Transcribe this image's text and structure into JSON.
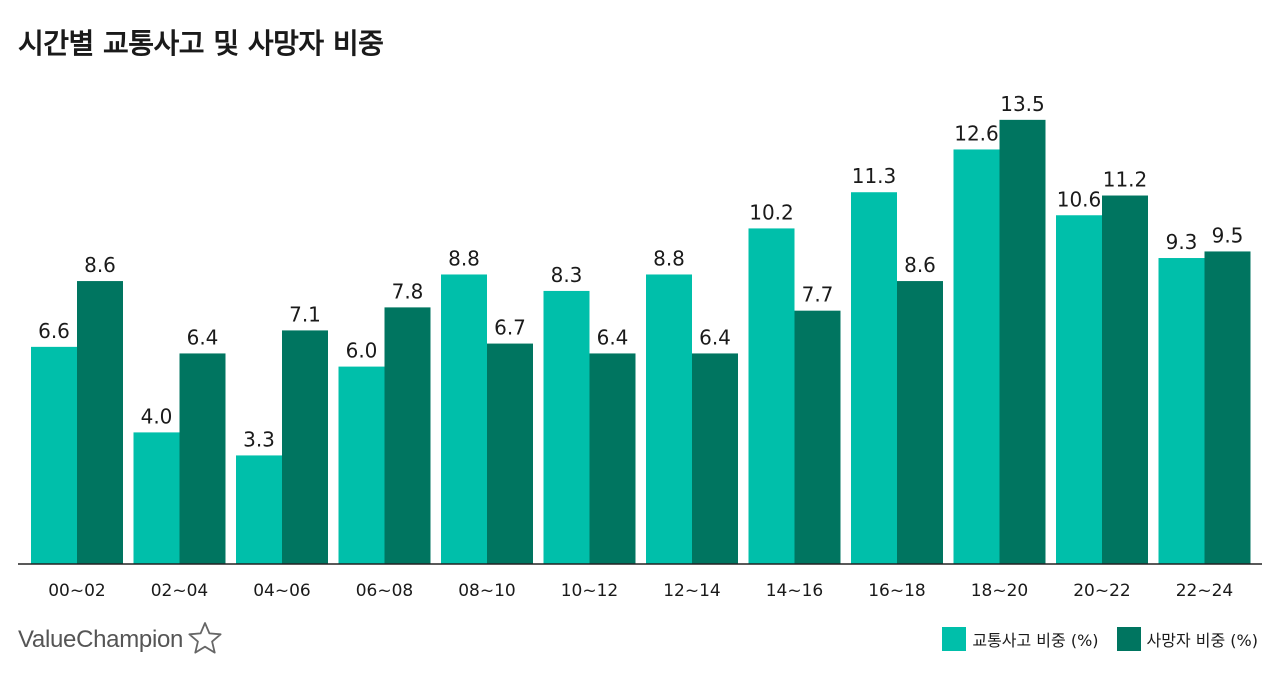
{
  "title": "시간별 교통사고 및 사망자 비중",
  "brand": {
    "name": "ValueChampion",
    "icon": "star-outline-icon"
  },
  "chart_data": {
    "type": "bar",
    "categories": [
      "00~02",
      "02~04",
      "04~06",
      "06~08",
      "08~10",
      "10~12",
      "12~14",
      "14~16",
      "16~18",
      "18~20",
      "20~22",
      "22~24"
    ],
    "series": [
      {
        "name": "교통사고 비중 (%)",
        "color": "#00BFAA",
        "values": [
          6.6,
          4.0,
          3.3,
          6.0,
          8.8,
          8.3,
          8.8,
          10.2,
          11.3,
          12.6,
          10.6,
          9.3
        ],
        "labels": [
          "6.6",
          "4.0",
          "3.3",
          "6.0",
          "8.8",
          "8.3",
          "8.8",
          "10.2",
          "11.3",
          "12.6",
          "10.6",
          "9.3"
        ]
      },
      {
        "name": "사망자 비중 (%)",
        "color": "#007560",
        "values": [
          8.6,
          6.4,
          7.1,
          7.8,
          6.7,
          6.4,
          6.4,
          7.7,
          8.6,
          13.5,
          11.2,
          9.5
        ],
        "labels": [
          "8.6",
          "6.4",
          "7.1",
          "7.8",
          "6.7",
          "6.4",
          "6.4",
          "7.7",
          "8.6",
          "13.5",
          "11.2",
          "9.5"
        ]
      }
    ],
    "xlabel": "",
    "ylabel": "",
    "ylim": [
      0,
      15
    ],
    "grid": false,
    "legend": "bottom-right"
  }
}
